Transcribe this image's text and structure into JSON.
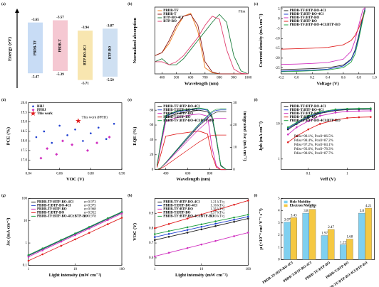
{
  "chart_data": [
    {
      "type": "energy",
      "title": "(a)",
      "ylabel": "Energy (eV)",
      "ylim": [
        -6.0,
        -3.2
      ],
      "categories": [
        "PBDB-TF",
        "PBDB-T",
        "BTP-BO-4Cl",
        "BTP-BO"
      ],
      "lumo": [
        -3.65,
        -3.57,
        -3.94,
        -3.87
      ],
      "homo": [
        -5.47,
        -5.39,
        -5.71,
        -5.59
      ],
      "colors": [
        "#c8dcf5",
        "#f5c8d2",
        "#f8e6b0",
        "#cfe0f2"
      ]
    },
    {
      "type": "line",
      "title": "(b)",
      "xlabel": "Wavelength (nm)",
      "ylabel": "Normalized absorption",
      "xlim": [
        350,
        1000
      ],
      "xticks": [
        400,
        500,
        600,
        700,
        800,
        900,
        1000
      ],
      "ylim": [
        0,
        1.1
      ],
      "legend": "upper left",
      "annotations": [
        {
          "text": "Film",
          "color": "#000000"
        }
      ],
      "x": [
        350,
        400,
        450,
        500,
        550,
        600,
        650,
        700,
        750,
        800,
        850,
        900,
        950,
        1000
      ],
      "series": [
        {
          "name": "PBDB-TF",
          "color": "#f08020",
          "values": [
            0.3,
            0.35,
            0.5,
            0.75,
            0.95,
            1.0,
            0.7,
            0.1,
            0.02,
            0,
            0,
            0,
            0,
            0
          ]
        },
        {
          "name": "PBDB-T",
          "color": "#8b1a1a",
          "values": [
            0.3,
            0.35,
            0.55,
            0.8,
            0.95,
            0.98,
            0.8,
            0.2,
            0.03,
            0,
            0,
            0,
            0,
            0
          ]
        },
        {
          "name": "BTP-BO-4Cl",
          "color": "#208040",
          "values": [
            0.2,
            0.25,
            0.15,
            0.15,
            0.25,
            0.4,
            0.55,
            0.7,
            0.85,
            0.98,
            0.85,
            0.3,
            0.05,
            0
          ]
        },
        {
          "name": "BTP-BO",
          "color": "#e04070",
          "values": [
            0.2,
            0.2,
            0.15,
            0.2,
            0.3,
            0.45,
            0.6,
            0.8,
            0.95,
            0.9,
            0.4,
            0.08,
            0.01,
            0
          ]
        }
      ]
    },
    {
      "type": "line",
      "title": "(c)",
      "xlabel": "Voltage (V)",
      "ylabel": "Current density (mA cm⁻²)",
      "xlim": [
        -0.2,
        1.0
      ],
      "xticks": [
        -0.2,
        {
          "value": 0,
          "label": "0.0"
        },
        0.2,
        0.4,
        0.6,
        0.8,
        {
          "value": 1,
          "label": "1.0"
        }
      ],
      "ylim": [
        -28,
        6
      ],
      "yticks": [
        5,
        0,
        -5,
        -10,
        -15,
        -20,
        -25
      ],
      "legend": "upper left",
      "x": [
        -0.2,
        0,
        0.2,
        0.4,
        0.6,
        0.7,
        0.75,
        0.8,
        0.85,
        0.88
      ],
      "series": [
        {
          "name": "PBDB-TF:BTP-BO-4Cl",
          "color": "#222222",
          "values": [
            -25.8,
            -25.6,
            -25.3,
            -24.9,
            -23.5,
            -20.5,
            -16,
            -8,
            1,
            5.5
          ]
        },
        {
          "name": "PBDB-T:BTP-BO-4Cl",
          "color": "#2040d0",
          "values": [
            -26.6,
            -26.4,
            -26.1,
            -25.6,
            -24,
            -20.8,
            -16.5,
            -9,
            0,
            5
          ]
        },
        {
          "name": "PBDB-TF:BTP-BO",
          "color": "#d030c0",
          "values": [
            -23.2,
            -23,
            -22.7,
            -22.2,
            -20.5,
            -16.5,
            -11,
            -3,
            4.5,
            5.8
          ]
        },
        {
          "name": "PBDB-T:BTP-BO",
          "color": "#e02020",
          "values": [
            -15.4,
            -15.2,
            -14.9,
            -14.5,
            -13.2,
            -11,
            -8.5,
            -4.5,
            1,
            4
          ]
        },
        {
          "name": "PBDB-TF:BTP-BO-4Cl:BTP-BO",
          "color": "#20a040",
          "values": [
            -26.9,
            -26.7,
            -26.4,
            -26,
            -24.8,
            -22,
            -18,
            -10,
            -0.5,
            4.5
          ]
        }
      ]
    },
    {
      "type": "scatter",
      "title": "(d)",
      "xlabel": "VOC (V)",
      "ylabel": "PCE (%)",
      "xlim": [
        0.84,
        0.9
      ],
      "xticks": [
        0.84,
        0.86,
        0.88,
        {
          "value": 0.9,
          "label": "0.90"
        }
      ],
      "ylim": [
        16.5,
        20.0
      ],
      "yticks": [
        {
          "value": 17,
          "label": "17.0"
        },
        17.5,
        {
          "value": 18,
          "label": "18.0"
        },
        18.5,
        {
          "value": 19,
          "label": "19.0"
        },
        19.5,
        {
          "value": 20,
          "label": "20.0"
        }
      ],
      "legend": "upper left",
      "annotations": [
        {
          "text": "This work (PPHJ)",
          "color": "#e02020"
        }
      ],
      "series": [
        {
          "name": "BHJ",
          "color": "#2040d0",
          "marker": "circle",
          "x": [
            0.845,
            0.85,
            0.855,
            0.86,
            0.865,
            0.87,
            0.875,
            0.88,
            0.885,
            0.89,
            0.895
          ],
          "values": [
            18.2,
            18.5,
            17.9,
            18.8,
            18.3,
            18.6,
            18.0,
            18.4,
            18.7,
            18.1,
            18.9
          ]
        },
        {
          "name": "PPHJ",
          "color": "#d030c0",
          "marker": "diamond",
          "x": [
            0.848,
            0.852,
            0.858,
            0.862,
            0.868,
            0.878,
            0.884,
            0.892
          ],
          "values": [
            17.1,
            17.6,
            17.3,
            18.0,
            17.8,
            17.5,
            17.9,
            18.2
          ]
        },
        {
          "name": "This work",
          "color": "#e02020",
          "marker": "star",
          "x": [
            0.872
          ],
          "values": [
            19.05
          ]
        }
      ]
    },
    {
      "type": "line",
      "title": "(e)",
      "xlabel": "Wavelength (nm)",
      "ylabel": "EQE (%)",
      "y2label": "integrated Jsc (mA cm⁻²)",
      "xlim": [
        300,
        1000
      ],
      "xticks": [
        400,
        600,
        800
      ],
      "ylim": [
        0,
        90
      ],
      "yticks": [
        0,
        20,
        40,
        60,
        80
      ],
      "y2lim": [
        0,
        30
      ],
      "y2ticks": [
        0,
        10,
        20,
        30
      ],
      "legend": "upper left",
      "x": [
        320,
        350,
        400,
        500,
        600,
        700,
        780,
        820,
        860,
        900,
        950
      ],
      "series": [
        {
          "name": "PBDB-TF:BTP-BO-4Cl",
          "color": "#222222",
          "values": [
            5,
            30,
            70,
            75,
            78,
            80,
            78,
            70,
            40,
            5,
            0
          ]
        },
        {
          "name": "PBDB-T:BTP-BO-4Cl",
          "color": "#2040d0",
          "values": [
            5,
            32,
            72,
            78,
            80,
            82,
            80,
            72,
            42,
            6,
            0
          ]
        },
        {
          "name": "PBDB-TF:BTP-BO",
          "color": "#d030c0",
          "values": [
            4,
            28,
            65,
            70,
            73,
            75,
            72,
            30,
            5,
            0,
            0
          ]
        },
        {
          "name": "PBDB-T:BTP-BO",
          "color": "#e02020",
          "values": [
            3,
            18,
            45,
            48,
            50,
            52,
            48,
            20,
            3,
            0,
            0
          ]
        },
        {
          "name": "PBDB-TF:BTP-BO-4Cl:BTP-BO",
          "color": "#20a040",
          "values": [
            5,
            33,
            73,
            79,
            81,
            83,
            81,
            73,
            43,
            6,
            0
          ]
        },
        {
          "axis": "y2",
          "color": "#222222",
          "values": [
            0,
            0.6,
            3,
            8.5,
            14,
            19.5,
            23,
            24.8,
            25.8,
            26,
            26
          ]
        },
        {
          "axis": "y2",
          "color": "#2040d0",
          "values": [
            0,
            0.6,
            3.1,
            8.8,
            14.5,
            20,
            23.7,
            25.6,
            26.6,
            26.8,
            26.8
          ]
        },
        {
          "axis": "y2",
          "color": "#d030c0",
          "values": [
            0,
            0.5,
            2.8,
            7.9,
            13,
            18,
            21.5,
            22.8,
            23,
            23,
            23
          ]
        },
        {
          "axis": "y2",
          "color": "#e02020",
          "values": [
            0,
            0.3,
            1.8,
            5.3,
            8.8,
            12.3,
            14.6,
            15.4,
            15.5,
            15.5,
            15.5
          ]
        },
        {
          "axis": "y2",
          "color": "#20a040",
          "values": [
            0,
            0.6,
            3.2,
            9,
            14.8,
            20.4,
            24.2,
            26.1,
            27.1,
            27.3,
            27.3
          ]
        }
      ]
    },
    {
      "type": "line",
      "title": "(f)",
      "xlabel": "Veff (V)",
      "ylabel": "Jph (mA cm⁻²)",
      "markers": true,
      "xlim": [
        0.02,
        5
      ],
      "xlog": true,
      "xticks": [
        0.1,
        1
      ],
      "ylim": [
        0.5,
        40
      ],
      "ylog": true,
      "yticks": [
        1,
        10
      ],
      "legend": "upper left",
      "annotations": [
        {
          "text": "Pdiss=98.1%, Pcoll=86.5%",
          "color": "#222222"
        },
        {
          "text": "Pdiss=98.4%, Pcoll=87.2%",
          "color": "#2040d0"
        },
        {
          "text": "Pdiss=97.2%, Pcoll=84.1%",
          "color": "#d030c0"
        },
        {
          "text": "Pdiss=93.6%, Pcoll=78.3%",
          "color": "#e02020"
        },
        {
          "text": "Pdiss=98.6%, Pcoll=87.7%",
          "color": "#20a040"
        }
      ],
      "x": [
        0.03,
        0.05,
        0.1,
        0.2,
        0.5,
        1,
        2,
        4
      ],
      "series": [
        {
          "name": "PBDB-TF:BTP-BO-4Cl",
          "color": "#222222",
          "values": [
            7,
            10,
            15,
            20,
            24,
            25.5,
            26,
            26.3
          ]
        },
        {
          "name": "PBDB-T:BTP-BO-4Cl",
          "color": "#2040d0",
          "values": [
            7.5,
            10.5,
            16,
            21,
            25,
            26.5,
            27,
            27.2
          ]
        },
        {
          "name": "PBDB-TF:BTP-BO",
          "color": "#d030c0",
          "values": [
            5,
            8,
            12,
            17,
            21,
            22.8,
            23.3,
            23.6
          ]
        },
        {
          "name": "PBDB-T:BTP-BO",
          "color": "#e02020",
          "values": [
            3,
            4.5,
            7,
            10,
            13,
            14.8,
            15.5,
            15.8
          ]
        },
        {
          "name": "PBDB-TF:BTP-BO-4Cl:BTP-BO",
          "color": "#20a040",
          "values": [
            8,
            11,
            17,
            22,
            26,
            27,
            27.5,
            27.7
          ]
        }
      ]
    },
    {
      "type": "line",
      "title": "(g)",
      "xlabel": "Light intensity (mW cm⁻²)",
      "ylabel": "Jsc (mA cm⁻²)",
      "markers": true,
      "xlim": [
        1,
        100
      ],
      "xlog": true,
      "xticks": [
        1,
        10,
        100
      ],
      "ylim": [
        0.1,
        100
      ],
      "ylog": true,
      "yticks": [
        0.1,
        1,
        10,
        100
      ],
      "legend": "upper left",
      "x": [
        1,
        2,
        5,
        10,
        20,
        50,
        100
      ],
      "series": [
        {
          "name": "PBDB-TF:BTP-BO-4Cl",
          "note": "α=0.973",
          "color": "#222222",
          "values": [
            0.27,
            0.53,
            1.29,
            2.52,
            4.94,
            12.1,
            23.5
          ]
        },
        {
          "name": "PBDB-T:BTP-BO-4Cl",
          "note": "α=0.975",
          "color": "#2040d0",
          "values": [
            0.28,
            0.55,
            1.34,
            2.62,
            5.13,
            12.6,
            24.4
          ]
        },
        {
          "name": "PBDB-TF:BTP-BO",
          "note": "α=0.968",
          "color": "#d030c0",
          "values": [
            0.24,
            0.47,
            1.15,
            2.25,
            4.4,
            10.8,
            21.0
          ]
        },
        {
          "name": "PBDB-T:BTP-BO",
          "note": "α=0.952",
          "color": "#e02020",
          "values": [
            0.16,
            0.31,
            0.75,
            1.46,
            2.86,
            7.0,
            13.6
          ]
        },
        {
          "name": "PBDB-TF:BTP-BO-4Cl:BTP-BO",
          "note": "α=0.978",
          "color": "#20a040",
          "values": [
            0.29,
            0.57,
            1.38,
            2.7,
            5.3,
            13.0,
            25.2
          ]
        }
      ]
    },
    {
      "type": "line",
      "title": "(h)",
      "xlabel": "Light intensity (mW cm⁻²)",
      "ylabel": "VOC (V)",
      "markers": true,
      "xlim": [
        1,
        100
      ],
      "xlog": true,
      "xticks": [
        1,
        10,
        100
      ],
      "ylim": [
        0.55,
        1.0
      ],
      "yticks": [
        0.6,
        0.7,
        0.8,
        0.9
      ],
      "legend": "upper left",
      "x": [
        1,
        2,
        5,
        10,
        20,
        50,
        100
      ],
      "series": [
        {
          "name": "PBDB-TF:BTP-BO-4Cl",
          "note": "1.21 kT/q",
          "color": "#222222",
          "values": [
            0.72,
            0.742,
            0.77,
            0.792,
            0.814,
            0.843,
            0.865
          ]
        },
        {
          "name": "PBDB-T:BTP-BO-4Cl",
          "note": "1.16 kT/q",
          "color": "#2040d0",
          "values": [
            0.74,
            0.761,
            0.788,
            0.809,
            0.83,
            0.857,
            0.878
          ]
        },
        {
          "name": "PBDB-TF:BTP-BO",
          "note": "1.35 kT/q",
          "color": "#d030c0",
          "values": [
            0.61,
            0.634,
            0.666,
            0.69,
            0.714,
            0.746,
            0.77
          ]
        },
        {
          "name": "PBDB-T:BTP-BO",
          "note": "1.57 kT/q",
          "color": "#e02020",
          "values": [
            0.8,
            0.828,
            0.865,
            0.893,
            0.921,
            0.958,
            0.986
          ]
        },
        {
          "name": "PBDB-TF:BTP-BO-4Cl:BTP-BO",
          "note": "1.10 kT/q",
          "color": "#20a040",
          "values": [
            0.76,
            0.78,
            0.806,
            0.826,
            0.846,
            0.872,
            0.891
          ]
        }
      ]
    },
    {
      "type": "bar",
      "title": "(i)",
      "ylabel": "μ (×10⁻⁴ cm² V⁻¹ s⁻¹)",
      "ylim": [
        0,
        5
      ],
      "yticks": [
        0,
        1,
        2,
        3,
        4,
        5
      ],
      "legend": "upper left",
      "categories": [
        "PBDB-TF:BTP-BO-4Cl",
        "PBDB-T:BTP-BO-4Cl",
        "PBDB-TF:BTP-BO",
        "PBDB-T:BTP-BO",
        "PBDB-TF:BTP-BO-4Cl:BTP-BO"
      ],
      "series": [
        {
          "name": "Hole Mobility",
          "color": "#7fd0f0",
          "values": [
            3.07,
            3.8,
            1.97,
            1.22,
            3.8
          ]
        },
        {
          "name": "Electron Mobility",
          "color": "#f5c842",
          "values": [
            3.43,
            4.11,
            2.47,
            1.68,
            4.21
          ]
        }
      ]
    }
  ]
}
